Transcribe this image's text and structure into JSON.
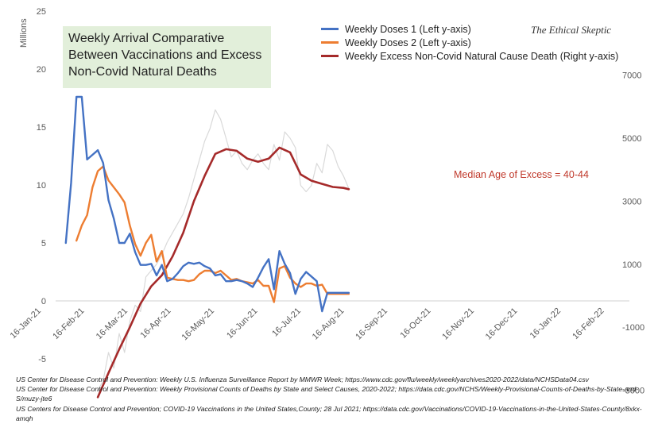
{
  "title": "Weekly Arrival Comparative Between Vaccinations and Excess Non-Covid Natural Deaths",
  "brand": "The Ethical Skeptic",
  "annotation": "Median Age of Excess = 40-44",
  "sources": [
    "US Center for Disease Control and Prevention: Weekly U.S. Influenza Surveillance Report by MMWR Week; https://www.cdc.gov/flu/weekly/weeklyarchives2020-2022/data/NCHSData04.csv",
    "US Center for Disease Control and Prevention: Weekly Provisional Counts of Deaths by State and Select Causes, 2020-2022; https://data.cdc.gov/NCHS/Weekly-Provisional-Counts-of-Deaths-by-State-and-S/muzy-jte6",
    "US Centers for Disease Control and Prevention; COVID-19 Vaccinations in the United States,County; 28 Jul 2021; https://data.cdc.gov/Vaccinations/COVID-19-Vaccinations-in-the-United-States-County/8xkx-amqh"
  ],
  "chart_data": {
    "type": "line",
    "ylabel": "Millions",
    "ylim": [
      -5,
      25
    ],
    "y2lim": [
      -3000,
      8000
    ],
    "yticks": [
      -5,
      0,
      5,
      10,
      15,
      20,
      25
    ],
    "y2ticks": [
      -3000,
      -1000,
      1000,
      3000,
      5000,
      7000
    ],
    "categories": [
      "16-Jan-21",
      "16-Feb-21",
      "16-Mar-21",
      "16-Apr-21",
      "16-May-21",
      "16-Jun-21",
      "16-Jul-21",
      "16-Aug-21",
      "16-Sep-21",
      "16-Oct-21",
      "16-Nov-21",
      "16-Dec-21",
      "16-Jan-22",
      "16-Feb-22"
    ],
    "grid": false,
    "legend_position": "top-right",
    "series": [
      {
        "name": "Weekly Doses 1 (Left y-axis)",
        "axis": "left",
        "color": "#4472c4",
        "points": [
          [
            "2021-02-16",
            5.0
          ],
          [
            "2021-02-23",
            10.2
          ],
          [
            "2021-03-02",
            17.6
          ],
          [
            "2021-03-09",
            17.6
          ],
          [
            "2021-03-16",
            12.2
          ],
          [
            "2021-03-23",
            12.6
          ],
          [
            "2021-03-30",
            13.0
          ],
          [
            "2021-04-06",
            11.9
          ],
          [
            "2021-04-13",
            8.7
          ],
          [
            "2021-04-20",
            7.1
          ],
          [
            "2021-04-27",
            5.0
          ],
          [
            "2021-05-04",
            5.0
          ],
          [
            "2021-05-11",
            5.8
          ],
          [
            "2021-05-18",
            4.2
          ],
          [
            "2021-05-25",
            3.1
          ],
          [
            "2021-06-01",
            3.1
          ],
          [
            "2021-06-08",
            3.2
          ],
          [
            "2021-06-15",
            2.2
          ],
          [
            "2021-06-22",
            3.1
          ],
          [
            "2021-06-29",
            1.7
          ],
          [
            "2021-07-06",
            1.9
          ],
          [
            "2021-07-13",
            2.4
          ],
          [
            "2021-07-20",
            3.0
          ],
          [
            "2021-07-27",
            3.3
          ],
          [
            "2021-08-03",
            3.2
          ],
          [
            "2021-08-10",
            3.3
          ],
          [
            "2021-08-17",
            3.0
          ],
          [
            "2021-08-24",
            2.8
          ],
          [
            "2021-08-31",
            2.2
          ],
          [
            "2021-09-07",
            2.3
          ],
          [
            "2021-09-14",
            1.7
          ],
          [
            "2021-09-21",
            1.7
          ],
          [
            "2021-09-28",
            1.8
          ],
          [
            "2021-10-05",
            1.7
          ],
          [
            "2021-10-12",
            1.5
          ],
          [
            "2021-10-19",
            1.2
          ],
          [
            "2021-10-26",
            2.0
          ],
          [
            "2021-11-02",
            2.9
          ],
          [
            "2021-11-09",
            3.6
          ],
          [
            "2021-11-16",
            1.0
          ],
          [
            "2021-11-23",
            4.3
          ],
          [
            "2021-11-30",
            3.2
          ],
          [
            "2021-12-07",
            2.4
          ],
          [
            "2021-12-14",
            0.6
          ],
          [
            "2021-12-21",
            1.9
          ],
          [
            "2021-12-28",
            2.5
          ],
          [
            "2022-01-04",
            2.1
          ],
          [
            "2022-01-11",
            1.7
          ],
          [
            "2022-01-18",
            -0.9
          ],
          [
            "2022-01-25",
            0.7
          ],
          [
            "2022-02-01",
            0.7
          ],
          [
            "2022-02-08",
            0.7
          ],
          [
            "2022-02-15",
            0.7
          ],
          [
            "2022-02-22",
            0.7
          ]
        ]
      },
      {
        "name": "Weekly Doses 2 (Left y-axis)",
        "axis": "left",
        "color": "#ed7d31",
        "points": [
          [
            "2021-03-02",
            5.2
          ],
          [
            "2021-03-09",
            6.5
          ],
          [
            "2021-03-16",
            7.4
          ],
          [
            "2021-03-23",
            9.8
          ],
          [
            "2021-03-30",
            11.2
          ],
          [
            "2021-04-06",
            11.6
          ],
          [
            "2021-04-13",
            10.4
          ],
          [
            "2021-04-20",
            9.8
          ],
          [
            "2021-04-27",
            9.2
          ],
          [
            "2021-05-04",
            8.5
          ],
          [
            "2021-05-11",
            6.5
          ],
          [
            "2021-05-18",
            4.9
          ],
          [
            "2021-05-25",
            3.9
          ],
          [
            "2021-06-01",
            5.0
          ],
          [
            "2021-06-08",
            5.7
          ],
          [
            "2021-06-15",
            3.4
          ],
          [
            "2021-06-22",
            4.3
          ],
          [
            "2021-06-29",
            2.0
          ],
          [
            "2021-07-06",
            1.9
          ],
          [
            "2021-07-13",
            1.8
          ],
          [
            "2021-07-20",
            1.8
          ],
          [
            "2021-07-27",
            1.7
          ],
          [
            "2021-08-03",
            1.8
          ],
          [
            "2021-08-10",
            2.3
          ],
          [
            "2021-08-17",
            2.6
          ],
          [
            "2021-08-24",
            2.6
          ],
          [
            "2021-08-31",
            2.4
          ],
          [
            "2021-09-07",
            2.6
          ],
          [
            "2021-09-14",
            2.2
          ],
          [
            "2021-09-21",
            1.8
          ],
          [
            "2021-09-28",
            1.9
          ],
          [
            "2021-10-05",
            1.7
          ],
          [
            "2021-10-12",
            1.6
          ],
          [
            "2021-10-19",
            1.5
          ],
          [
            "2021-10-26",
            1.8
          ],
          [
            "2021-11-02",
            1.3
          ],
          [
            "2021-11-09",
            1.3
          ],
          [
            "2021-11-16",
            -0.1
          ],
          [
            "2021-11-23",
            2.8
          ],
          [
            "2021-11-30",
            3.0
          ],
          [
            "2021-12-07",
            2.0
          ],
          [
            "2021-12-14",
            1.5
          ],
          [
            "2021-12-21",
            1.2
          ],
          [
            "2021-12-28",
            1.5
          ],
          [
            "2022-01-04",
            1.5
          ],
          [
            "2022-01-11",
            1.3
          ],
          [
            "2022-01-18",
            1.4
          ],
          [
            "2022-01-25",
            0.6
          ],
          [
            "2022-02-01",
            0.6
          ],
          [
            "2022-02-08",
            0.6
          ],
          [
            "2022-02-15",
            0.6
          ],
          [
            "2022-02-22",
            0.6
          ]
        ]
      },
      {
        "name": "Weekly Excess Non-Covid Natural Cause Death (Right y-axis)",
        "axis": "right",
        "color": "#a52a2a",
        "points": [
          [
            "2021-03-30",
            -3220
          ],
          [
            "2021-04-13",
            -2450
          ],
          [
            "2021-04-27",
            -1700
          ],
          [
            "2021-05-11",
            -1000
          ],
          [
            "2021-05-25",
            -250
          ],
          [
            "2021-06-08",
            300
          ],
          [
            "2021-06-22",
            650
          ],
          [
            "2021-07-06",
            1250
          ],
          [
            "2021-07-20",
            2000
          ],
          [
            "2021-08-03",
            3000
          ],
          [
            "2021-08-17",
            3800
          ],
          [
            "2021-08-31",
            4500
          ],
          [
            "2021-09-14",
            4650
          ],
          [
            "2021-09-28",
            4600
          ],
          [
            "2021-10-12",
            4350
          ],
          [
            "2021-10-26",
            4250
          ],
          [
            "2021-11-09",
            4350
          ],
          [
            "2021-11-23",
            4700
          ],
          [
            "2021-12-07",
            4550
          ],
          [
            "2021-12-21",
            3850
          ],
          [
            "2022-01-04",
            3650
          ],
          [
            "2022-01-18",
            3550
          ],
          [
            "2022-02-01",
            3450
          ],
          [
            "2022-02-15",
            3420
          ],
          [
            "2022-02-22",
            3380
          ]
        ]
      },
      {
        "axis": "right",
        "color": "#d9d9d9",
        "points": [
          [
            "2021-03-30",
            -3000
          ],
          [
            "2021-04-06",
            -2700
          ],
          [
            "2021-04-13",
            -1800
          ],
          [
            "2021-04-20",
            -2300
          ],
          [
            "2021-04-27",
            -1200
          ],
          [
            "2021-05-04",
            -1800
          ],
          [
            "2021-05-11",
            -800
          ],
          [
            "2021-05-18",
            -300
          ],
          [
            "2021-05-25",
            -500
          ],
          [
            "2021-06-01",
            600
          ],
          [
            "2021-06-08",
            800
          ],
          [
            "2021-06-15",
            1000
          ],
          [
            "2021-06-22",
            1300
          ],
          [
            "2021-06-29",
            1700
          ],
          [
            "2021-07-06",
            2000
          ],
          [
            "2021-07-13",
            2300
          ],
          [
            "2021-07-20",
            2600
          ],
          [
            "2021-07-27",
            3100
          ],
          [
            "2021-08-03",
            3700
          ],
          [
            "2021-08-10",
            4300
          ],
          [
            "2021-08-17",
            4900
          ],
          [
            "2021-08-24",
            5300
          ],
          [
            "2021-08-31",
            5900
          ],
          [
            "2021-09-07",
            5600
          ],
          [
            "2021-09-14",
            5000
          ],
          [
            "2021-09-21",
            4400
          ],
          [
            "2021-09-28",
            4600
          ],
          [
            "2021-10-05",
            4200
          ],
          [
            "2021-10-12",
            4000
          ],
          [
            "2021-10-19",
            4300
          ],
          [
            "2021-10-26",
            4500
          ],
          [
            "2021-11-02",
            4200
          ],
          [
            "2021-11-09",
            4000
          ],
          [
            "2021-11-16",
            4800
          ],
          [
            "2021-11-23",
            4300
          ],
          [
            "2021-11-30",
            5200
          ],
          [
            "2021-12-07",
            5000
          ],
          [
            "2021-12-14",
            4700
          ],
          [
            "2021-12-21",
            3500
          ],
          [
            "2021-12-28",
            3300
          ],
          [
            "2022-01-04",
            3500
          ],
          [
            "2022-01-11",
            4200
          ],
          [
            "2022-01-18",
            3900
          ],
          [
            "2022-01-25",
            4800
          ],
          [
            "2022-02-01",
            4600
          ],
          [
            "2022-02-08",
            4100
          ],
          [
            "2022-02-15",
            3800
          ],
          [
            "2022-02-22",
            3400
          ]
        ]
      }
    ]
  }
}
